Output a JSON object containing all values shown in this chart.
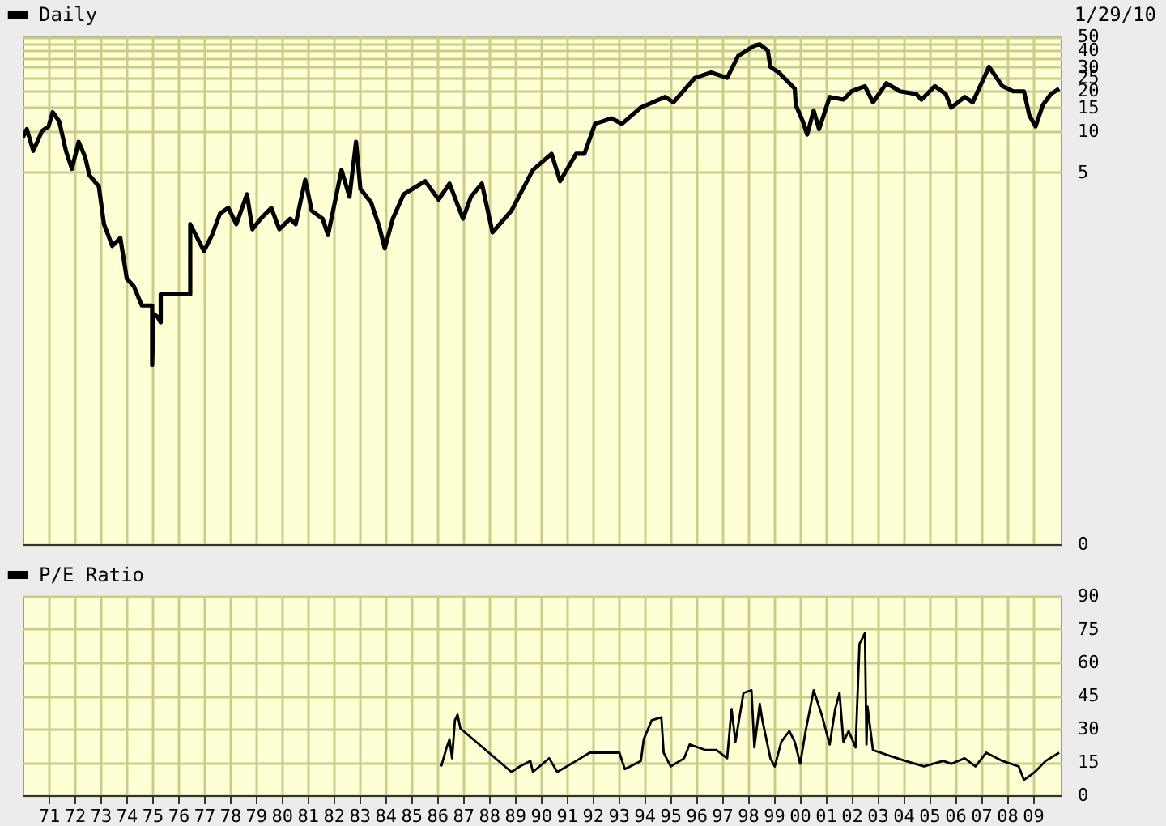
{
  "chart_data": [
    {
      "type": "line",
      "annotations": [
        "1/29/10"
      ],
      "log": "y",
      "grid": true,
      "legend": "top left",
      "tick_labels": "y",
      "line_style": "solid",
      "xlim": [
        1970,
        2010.08
      ],
      "ylim": [
        0.009,
        51
      ],
      "xticks": [
        1971,
        1972,
        1973,
        1974,
        1975,
        1976,
        1977,
        1978,
        1979,
        1980,
        1981,
        1982,
        1983,
        1984,
        1985,
        1986,
        1987,
        1988,
        1989,
        1990,
        1991,
        1992,
        1993,
        1994,
        1995,
        1996,
        1997,
        1998,
        1999,
        2000,
        2001,
        2002,
        2003,
        2004,
        2005,
        2006,
        2007,
        2008,
        2009
      ],
      "yticks": [
        {
          "value": 0.009,
          "label": "0"
        },
        5,
        10,
        15,
        20,
        25,
        30,
        {
          "value": 35,
          "label": null
        },
        40,
        {
          "value": 45,
          "label": null
        },
        50
      ],
      "series": [
        {
          "name": "Daily",
          "color": "#000000",
          "x": [
            1970.0,
            1970.16,
            1970.41,
            1970.75,
            1971.0,
            1971.16,
            1971.41,
            1971.67,
            1971.9,
            1972.16,
            1972.41,
            1972.58,
            1972.94,
            1973.14,
            1973.46,
            1973.77,
            1974.02,
            1974.29,
            1974.6,
            1975.0,
            1975.0,
            1975.05,
            1975.2,
            1975.33,
            1975.33,
            1976.47,
            1976.47,
            1976.79,
            1977.0,
            1977.31,
            1977.62,
            1977.94,
            1978.25,
            1978.66,
            1978.87,
            1979.19,
            1979.6,
            1979.91,
            1980.33,
            1980.54,
            1980.91,
            1981.16,
            1981.58,
            1981.79,
            1982.31,
            1982.62,
            1982.87,
            1983.04,
            1983.45,
            1983.77,
            1983.98,
            1984.29,
            1984.71,
            1985.54,
            1986.06,
            1986.48,
            1987.0,
            1987.31,
            1987.73,
            1988.14,
            1988.87,
            1989.7,
            1990.42,
            1990.75,
            1991.37,
            1991.69,
            1992.1,
            1992.73,
            1993.14,
            1993.86,
            1994.81,
            1995.12,
            1995.96,
            1996.58,
            1997.2,
            1997.62,
            1998.25,
            1998.46,
            1998.77,
            1998.87,
            1999.19,
            1999.5,
            1999.81,
            1999.85,
            2000.12,
            2000.29,
            2000.54,
            2000.75,
            2001.16,
            2001.69,
            2002.0,
            2002.52,
            2002.83,
            2003.35,
            2003.87,
            2004.5,
            2004.7,
            2005.22,
            2005.64,
            2005.85,
            2006.37,
            2006.68,
            2007.31,
            2007.83,
            2008.25,
            2008.66,
            2008.87,
            2009.11,
            2009.39,
            2009.7,
            2010.02
          ],
          "values": [
            9.0,
            10.4,
            7.2,
            10.1,
            10.9,
            13.9,
            11.9,
            7.2,
            5.3,
            8.4,
            6.5,
            4.75,
            3.94,
            2.07,
            1.43,
            1.64,
            0.82,
            0.72,
            0.52,
            0.52,
            0.19,
            0.45,
            0.43,
            0.39,
            0.63,
            0.63,
            2.07,
            1.57,
            1.31,
            1.72,
            2.48,
            2.73,
            2.07,
            3.44,
            1.9,
            2.27,
            2.73,
            1.9,
            2.27,
            2.07,
            4.4,
            2.6,
            2.27,
            1.72,
            5.2,
            3.3,
            8.4,
            3.76,
            3.0,
            1.98,
            1.37,
            2.27,
            3.44,
            4.3,
            3.14,
            4.13,
            2.27,
            3.3,
            4.13,
            1.8,
            2.6,
            5.2,
            6.85,
            4.3,
            6.85,
            6.85,
            11.4,
            12.5,
            11.4,
            15,
            18,
            16.4,
            24.9,
            27.3,
            24.9,
            36,
            43,
            44,
            39.5,
            30,
            27.3,
            23.8,
            20.7,
            15.7,
            11.9,
            9.5,
            14.3,
            10.4,
            18,
            17.2,
            19.8,
            21.6,
            16.4,
            22.7,
            19.8,
            18.9,
            17.2,
            21.6,
            18.9,
            15,
            18,
            16.4,
            30,
            21.6,
            19.8,
            19.8,
            13.1,
            10.9,
            15.7,
            18.9,
            20.7
          ]
        }
      ]
    },
    {
      "type": "line",
      "grid": true,
      "legend": "top left",
      "line_style": "solid",
      "xlim": [
        1970,
        2010.08
      ],
      "ylim": [
        0,
        90
      ],
      "xticks": [
        {
          "value": 1971,
          "label": "71"
        },
        {
          "value": 1972,
          "label": "72"
        },
        {
          "value": 1973,
          "label": "73"
        },
        {
          "value": 1974,
          "label": "74"
        },
        {
          "value": 1975,
          "label": "75"
        },
        {
          "value": 1976,
          "label": "76"
        },
        {
          "value": 1977,
          "label": "77"
        },
        {
          "value": 1978,
          "label": "78"
        },
        {
          "value": 1979,
          "label": "79"
        },
        {
          "value": 1980,
          "label": "80"
        },
        {
          "value": 1981,
          "label": "81"
        },
        {
          "value": 1982,
          "label": "82"
        },
        {
          "value": 1983,
          "label": "83"
        },
        {
          "value": 1984,
          "label": "84"
        },
        {
          "value": 1985,
          "label": "85"
        },
        {
          "value": 1986,
          "label": "86"
        },
        {
          "value": 1987,
          "label": "87"
        },
        {
          "value": 1988,
          "label": "88"
        },
        {
          "value": 1989,
          "label": "89"
        },
        {
          "value": 1990,
          "label": "90"
        },
        {
          "value": 1991,
          "label": "91"
        },
        {
          "value": 1992,
          "label": "92"
        },
        {
          "value": 1993,
          "label": "93"
        },
        {
          "value": 1994,
          "label": "94"
        },
        {
          "value": 1995,
          "label": "95"
        },
        {
          "value": 1996,
          "label": "96"
        },
        {
          "value": 1997,
          "label": "97"
        },
        {
          "value": 1998,
          "label": "98"
        },
        {
          "value": 1999,
          "label": "99"
        },
        {
          "value": 2000,
          "label": "00"
        },
        {
          "value": 2001,
          "label": "01"
        },
        {
          "value": 2002,
          "label": "02"
        },
        {
          "value": 2003,
          "label": "03"
        },
        {
          "value": 2004,
          "label": "04"
        },
        {
          "value": 2005,
          "label": "05"
        },
        {
          "value": 2006,
          "label": "06"
        },
        {
          "value": 2007,
          "label": "07"
        },
        {
          "value": 2008,
          "label": "08"
        },
        {
          "value": 2009,
          "label": "09"
        }
      ],
      "yticks": [
        0,
        15,
        30,
        45,
        60,
        75,
        90
      ],
      "series": [
        {
          "name": "P/E Ratio",
          "color": "#000000",
          "x": [
            1986.16,
            1986.37,
            1986.48,
            1986.58,
            1986.69,
            1986.79,
            1986.9,
            1988.87,
            1989.19,
            1989.6,
            1989.7,
            1990.33,
            1990.64,
            1991.37,
            1991.89,
            1992.62,
            1993.04,
            1993.25,
            1993.87,
            1993.98,
            1994.29,
            1994.66,
            1994.75,
            1995.02,
            1995.54,
            1995.75,
            1996.37,
            1996.79,
            1997.2,
            1997.37,
            1997.52,
            1997.83,
            1998.14,
            1998.25,
            1998.46,
            1998.56,
            1998.87,
            1999.04,
            1999.29,
            1999.6,
            1999.81,
            2000.02,
            2000.23,
            2000.54,
            2000.85,
            2001.16,
            2001.37,
            2001.54,
            2001.69,
            2001.89,
            2002.16,
            2002.31,
            2002.52,
            2002.58,
            2002.62,
            2002.83,
            2003.46,
            2004.08,
            2004.8,
            2005.54,
            2005.85,
            2006.37,
            2006.79,
            2007.2,
            2007.83,
            2008.46,
            2008.66,
            2009.08,
            2009.5,
            2010.02
          ],
          "values": [
            13,
            21.6,
            25.3,
            16.7,
            33.9,
            36.4,
            30.2,
            10.5,
            13,
            15.5,
            10.5,
            16.7,
            10.5,
            15.5,
            19.2,
            19.2,
            19.2,
            11.8,
            15.5,
            25.3,
            33.9,
            35.2,
            19.2,
            13,
            16.7,
            22.9,
            20.4,
            20.4,
            16.7,
            38.9,
            24.1,
            46.2,
            47.4,
            21.6,
            41.3,
            33.9,
            16.7,
            13,
            24.1,
            29,
            24.1,
            14.2,
            29,
            47.4,
            36.4,
            22.9,
            38.9,
            46.2,
            24.1,
            29,
            21.6,
            68.4,
            73.2,
            22.9,
            40,
            20.4,
            17.9,
            15.5,
            13,
            15.5,
            14.2,
            16.7,
            13,
            19.2,
            15.5,
            13,
            6.9,
            10.5,
            15.5,
            19.2
          ]
        }
      ]
    }
  ]
}
